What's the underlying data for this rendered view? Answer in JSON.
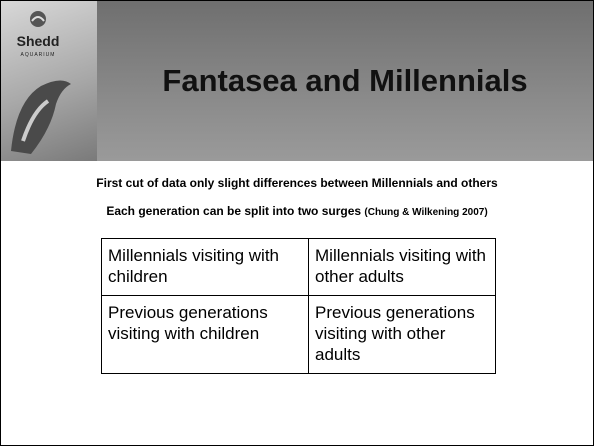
{
  "header": {
    "logo": {
      "name": "Shedd",
      "subtitle": "AQUARIUM"
    },
    "title": "Fantasea and Millennials"
  },
  "points": [
    {
      "text": "First cut of data only slight differences between Millennials and others"
    },
    {
      "text": "Each generation can be split into two surges",
      "citation": "(Chung & Wilkening 2007)"
    }
  ],
  "table": {
    "rows": [
      [
        "Millennials visiting with children",
        "Millennials visiting with other adults"
      ],
      [
        "Previous generations visiting with children",
        "Previous generations visiting with other adults"
      ]
    ]
  }
}
